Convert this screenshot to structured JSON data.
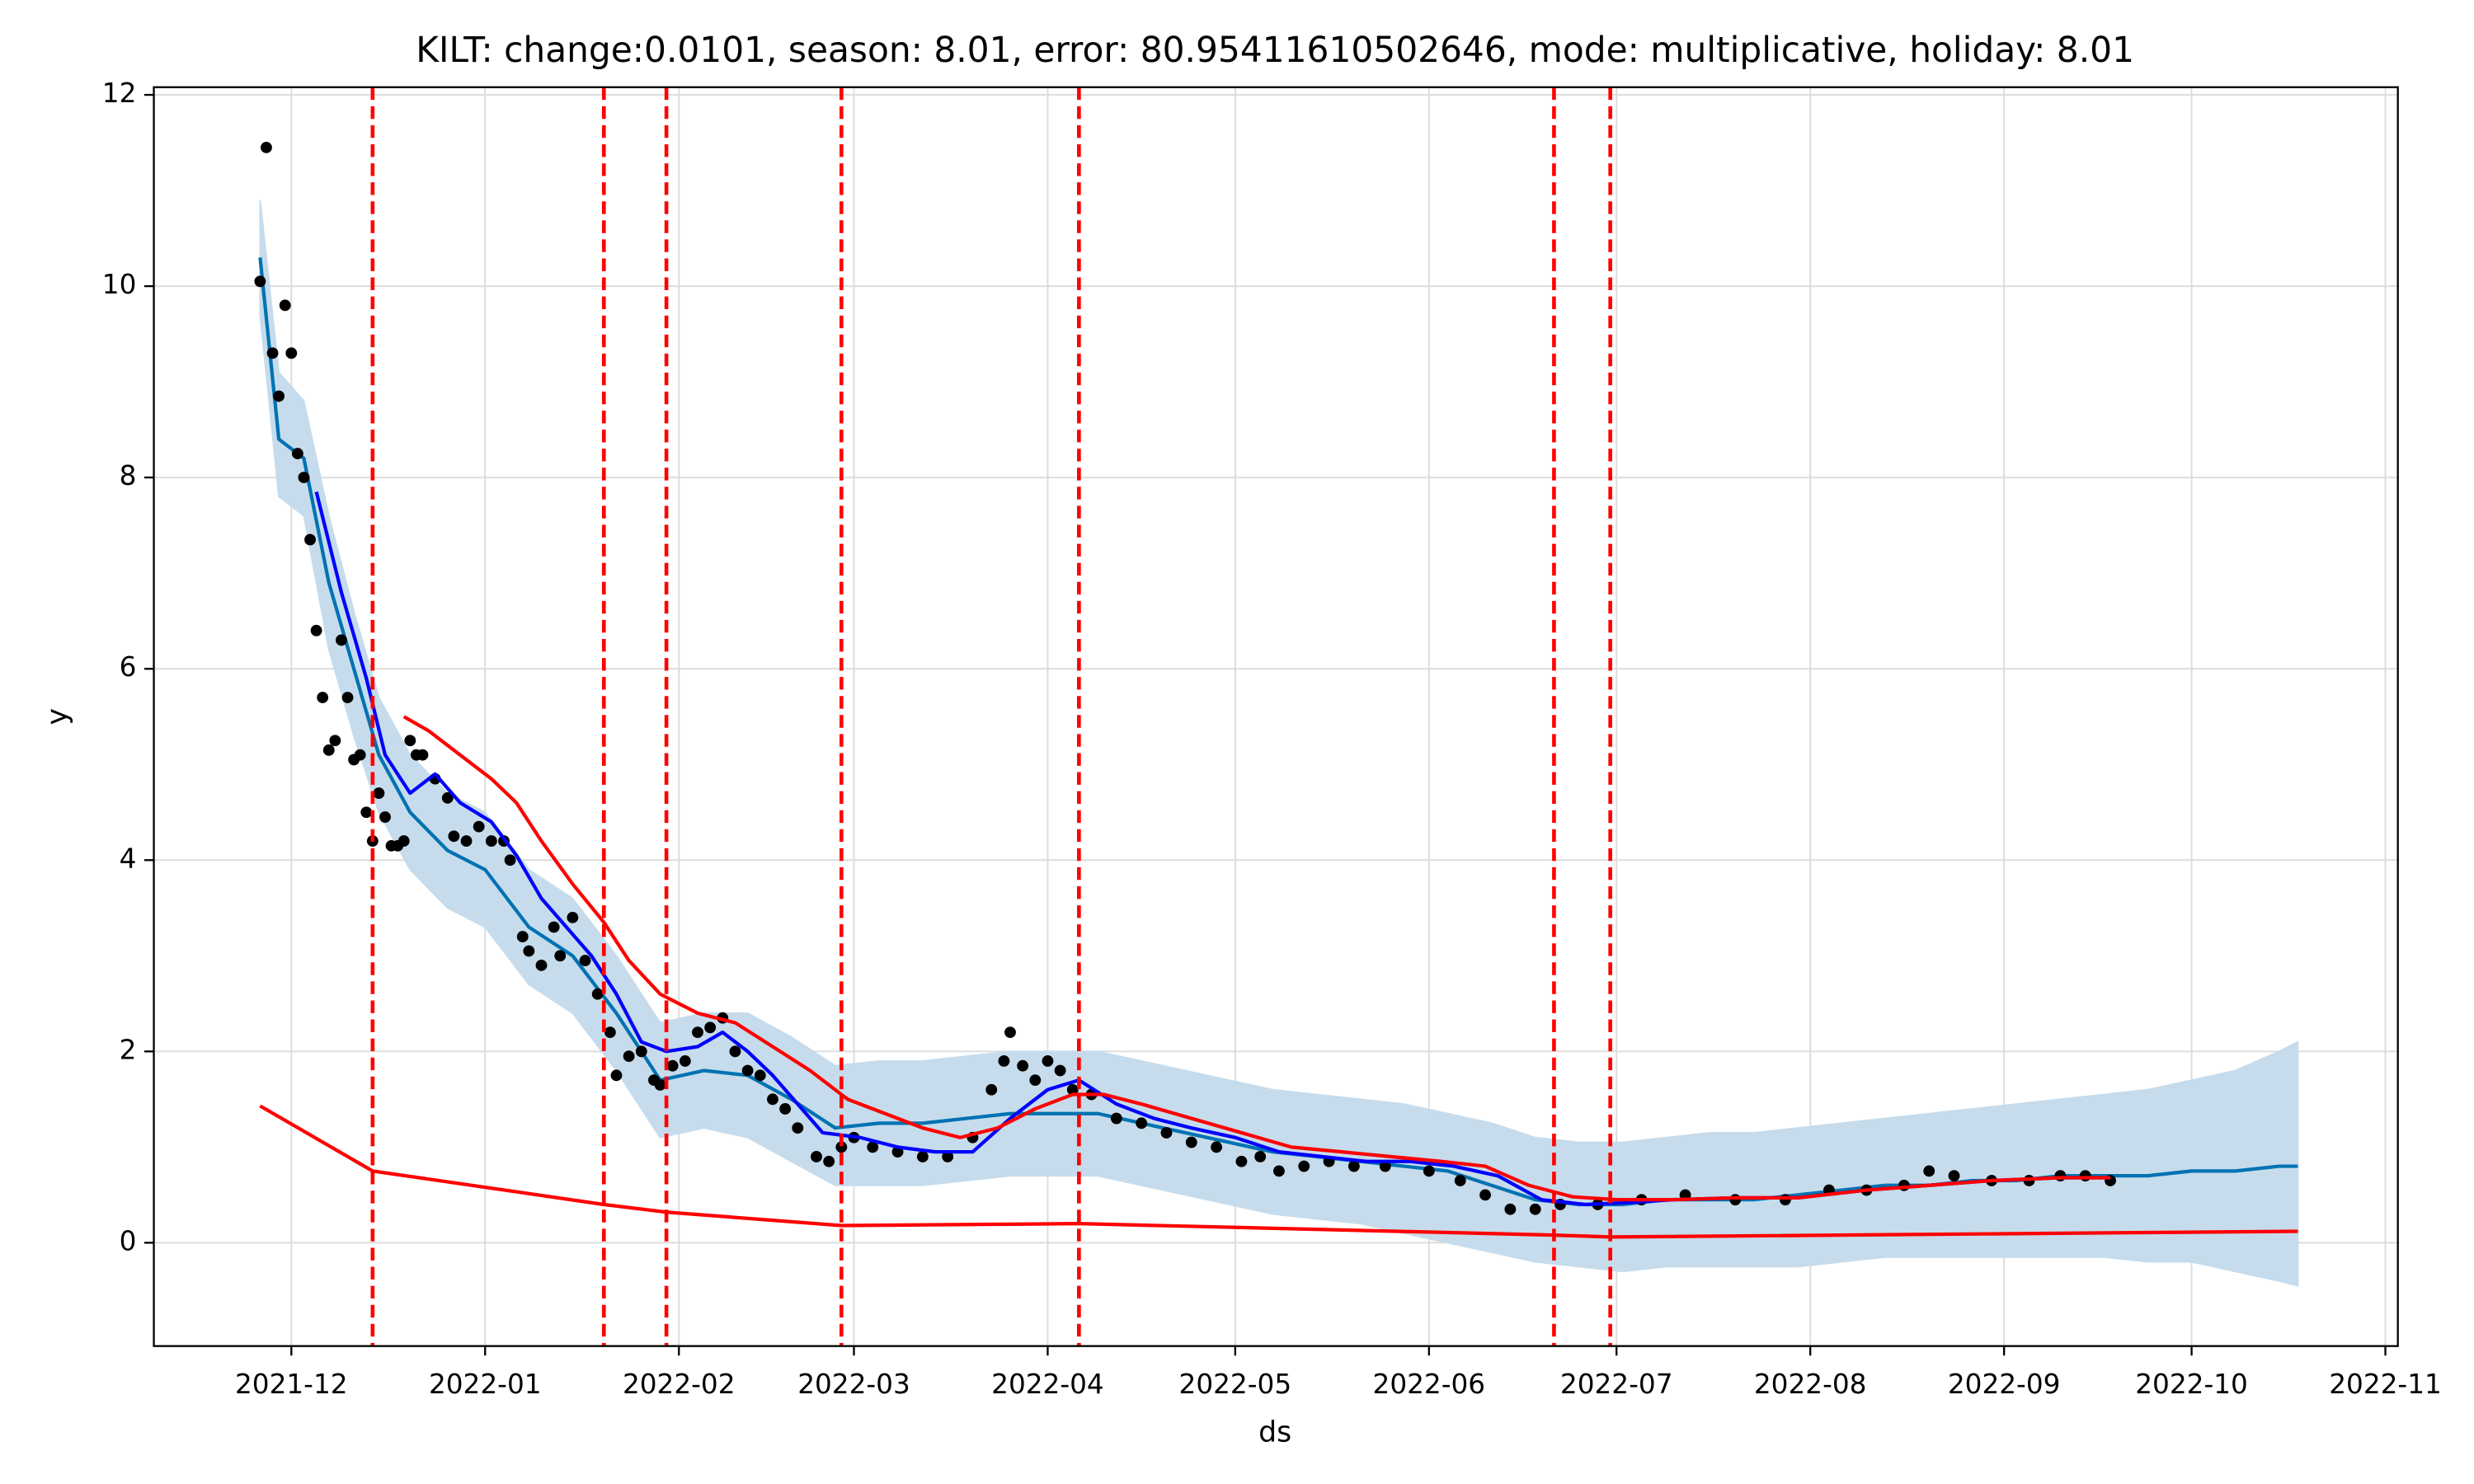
{
  "chart_data": {
    "type": "forecast",
    "title": "KILT: change:0.0101, season: 8.01, error: 80.95411610502646, mode: multiplicative, holiday: 8.01",
    "x_label": "ds",
    "y_label": "y",
    "xlim": [
      "2021-11-09",
      "2022-11-03"
    ],
    "ylim": [
      -1.08,
      12.08
    ],
    "xticks": [
      "2021-12",
      "2022-01",
      "2022-02",
      "2022-03",
      "2022-04",
      "2022-05",
      "2022-06",
      "2022-07",
      "2022-08",
      "2022-09",
      "2022-10",
      "2022-11"
    ],
    "yticks": [
      0,
      2,
      4,
      6,
      8,
      10,
      12
    ],
    "grid": true,
    "changepoints": [
      "2021-12-14",
      "2022-01-20",
      "2022-01-30",
      "2022-02-27",
      "2022-04-06",
      "2022-06-21",
      "2022-06-30"
    ],
    "changepoint_color": "#ff0000",
    "series": [
      {
        "type": "band",
        "color": "#c6dcec",
        "x": [
          "2021-11-26",
          "2021-11-29",
          "2021-12-03",
          "2021-12-07",
          "2021-12-11",
          "2021-12-15",
          "2021-12-20",
          "2021-12-26",
          "2022-01-01",
          "2022-01-08",
          "2022-01-15",
          "2022-01-22",
          "2022-01-29",
          "2022-02-05",
          "2022-02-12",
          "2022-02-19",
          "2022-02-26",
          "2022-03-05",
          "2022-03-12",
          "2022-03-19",
          "2022-03-26",
          "2022-04-02",
          "2022-04-09",
          "2022-04-16",
          "2022-04-23",
          "2022-04-30",
          "2022-05-07",
          "2022-05-14",
          "2022-05-21",
          "2022-05-28",
          "2022-06-04",
          "2022-06-11",
          "2022-06-18",
          "2022-06-25",
          "2022-07-02",
          "2022-07-09",
          "2022-07-16",
          "2022-07-23",
          "2022-07-30",
          "2022-08-06",
          "2022-08-13",
          "2022-08-20",
          "2022-08-27",
          "2022-09-03",
          "2022-09-10",
          "2022-09-17",
          "2022-09-24",
          "2022-10-01",
          "2022-10-08",
          "2022-10-15",
          "2022-10-18"
        ],
        "lower": [
          9.7,
          7.8,
          7.6,
          6.2,
          5.3,
          4.5,
          3.9,
          3.5,
          3.3,
          2.7,
          2.4,
          1.8,
          1.1,
          1.2,
          1.1,
          0.85,
          0.6,
          0.6,
          0.6,
          0.65,
          0.7,
          0.7,
          0.7,
          0.6,
          0.5,
          0.4,
          0.3,
          0.25,
          0.2,
          0.1,
          0.0,
          -0.1,
          -0.2,
          -0.25,
          -0.3,
          -0.25,
          -0.25,
          -0.25,
          -0.25,
          -0.2,
          -0.15,
          -0.15,
          -0.15,
          -0.15,
          -0.15,
          -0.15,
          -0.2,
          -0.2,
          -0.3,
          -0.4,
          -0.45
        ],
        "upper": [
          10.9,
          9.1,
          8.8,
          7.6,
          6.6,
          5.7,
          5.1,
          4.7,
          4.5,
          3.9,
          3.6,
          3.0,
          2.3,
          2.4,
          2.4,
          2.15,
          1.85,
          1.9,
          1.9,
          1.95,
          2.0,
          2.0,
          2.0,
          1.9,
          1.8,
          1.7,
          1.6,
          1.55,
          1.5,
          1.45,
          1.35,
          1.25,
          1.1,
          1.05,
          1.05,
          1.1,
          1.15,
          1.15,
          1.2,
          1.25,
          1.3,
          1.35,
          1.4,
          1.45,
          1.5,
          1.55,
          1.6,
          1.7,
          1.8,
          2.0,
          2.1
        ]
      },
      {
        "type": "line",
        "color": "#0072b2",
        "x": [
          "2021-11-26",
          "2021-11-29",
          "2021-12-03",
          "2021-12-07",
          "2021-12-11",
          "2021-12-15",
          "2021-12-20",
          "2021-12-26",
          "2022-01-01",
          "2022-01-08",
          "2022-01-15",
          "2022-01-22",
          "2022-01-29",
          "2022-02-05",
          "2022-02-12",
          "2022-02-19",
          "2022-02-26",
          "2022-03-05",
          "2022-03-12",
          "2022-03-19",
          "2022-03-26",
          "2022-04-02",
          "2022-04-09",
          "2022-04-16",
          "2022-04-23",
          "2022-04-30",
          "2022-05-07",
          "2022-05-14",
          "2022-05-21",
          "2022-05-28",
          "2022-06-04",
          "2022-06-11",
          "2022-06-18",
          "2022-06-25",
          "2022-07-02",
          "2022-07-09",
          "2022-07-16",
          "2022-07-23",
          "2022-07-30",
          "2022-08-06",
          "2022-08-13",
          "2022-08-20",
          "2022-08-27",
          "2022-09-03",
          "2022-09-10",
          "2022-09-17",
          "2022-09-24",
          "2022-10-01",
          "2022-10-08",
          "2022-10-15",
          "2022-10-18"
        ],
        "values": [
          10.3,
          8.4,
          8.2,
          6.9,
          6.0,
          5.1,
          4.5,
          4.1,
          3.9,
          3.3,
          3.0,
          2.4,
          1.7,
          1.8,
          1.75,
          1.5,
          1.2,
          1.25,
          1.25,
          1.3,
          1.35,
          1.35,
          1.35,
          1.25,
          1.15,
          1.05,
          0.95,
          0.9,
          0.85,
          0.8,
          0.75,
          0.6,
          0.45,
          0.4,
          0.4,
          0.45,
          0.45,
          0.45,
          0.5,
          0.55,
          0.6,
          0.6,
          0.65,
          0.65,
          0.7,
          0.7,
          0.7,
          0.75,
          0.75,
          0.8,
          0.8
        ]
      },
      {
        "type": "scatter",
        "color": "#000000",
        "x": [
          "2021-11-26",
          "2021-11-27",
          "2021-11-28",
          "2021-11-29",
          "2021-11-30",
          "2021-12-01",
          "2021-12-02",
          "2021-12-03",
          "2021-12-04",
          "2021-12-05",
          "2021-12-06",
          "2021-12-07",
          "2021-12-08",
          "2021-12-09",
          "2021-12-10",
          "2021-12-11",
          "2021-12-12",
          "2021-12-13",
          "2021-12-14",
          "2021-12-15",
          "2021-12-16",
          "2021-12-17",
          "2021-12-18",
          "2021-12-19",
          "2021-12-20",
          "2021-12-21",
          "2021-12-22",
          "2021-12-24",
          "2021-12-26",
          "2021-12-27",
          "2021-12-29",
          "2021-12-31",
          "2022-01-02",
          "2022-01-04",
          "2022-01-05",
          "2022-01-07",
          "2022-01-08",
          "2022-01-10",
          "2022-01-12",
          "2022-01-13",
          "2022-01-15",
          "2022-01-17",
          "2022-01-19",
          "2022-01-21",
          "2022-01-22",
          "2022-01-24",
          "2022-01-26",
          "2022-01-28",
          "2022-01-29",
          "2022-01-31",
          "2022-02-02",
          "2022-02-04",
          "2022-02-06",
          "2022-02-08",
          "2022-02-10",
          "2022-02-12",
          "2022-02-14",
          "2022-02-16",
          "2022-02-18",
          "2022-02-20",
          "2022-02-23",
          "2022-02-25",
          "2022-02-27",
          "2022-03-01",
          "2022-03-04",
          "2022-03-08",
          "2022-03-12",
          "2022-03-16",
          "2022-03-20",
          "2022-03-23",
          "2022-03-25",
          "2022-03-26",
          "2022-03-28",
          "2022-03-30",
          "2022-04-01",
          "2022-04-03",
          "2022-04-05",
          "2022-04-08",
          "2022-04-12",
          "2022-04-16",
          "2022-04-20",
          "2022-04-24",
          "2022-04-28",
          "2022-05-02",
          "2022-05-05",
          "2022-05-08",
          "2022-05-12",
          "2022-05-16",
          "2022-05-20",
          "2022-05-25",
          "2022-06-01",
          "2022-06-06",
          "2022-06-10",
          "2022-06-14",
          "2022-06-18",
          "2022-06-22",
          "2022-06-28",
          "2022-07-05",
          "2022-07-12",
          "2022-07-20",
          "2022-07-28",
          "2022-08-04",
          "2022-08-10",
          "2022-08-16",
          "2022-08-20",
          "2022-08-24",
          "2022-08-30",
          "2022-09-05",
          "2022-09-10",
          "2022-09-14",
          "2022-09-18"
        ],
        "values": [
          10.05,
          11.45,
          9.3,
          8.85,
          9.8,
          9.3,
          8.25,
          8.0,
          7.35,
          6.4,
          5.7,
          5.15,
          5.25,
          6.3,
          5.7,
          5.05,
          5.1,
          4.5,
          4.2,
          4.7,
          4.45,
          4.15,
          4.15,
          4.2,
          5.25,
          5.1,
          5.1,
          4.85,
          4.65,
          4.25,
          4.2,
          4.35,
          4.2,
          4.2,
          4.0,
          3.2,
          3.05,
          2.9,
          3.3,
          3.0,
          3.4,
          2.95,
          2.6,
          2.2,
          1.75,
          1.95,
          2.0,
          1.7,
          1.65,
          1.85,
          1.9,
          2.2,
          2.25,
          2.35,
          2.0,
          1.8,
          1.75,
          1.5,
          1.4,
          1.2,
          0.9,
          0.85,
          1.0,
          1.1,
          1.0,
          0.95,
          0.9,
          0.9,
          1.1,
          1.6,
          1.9,
          2.2,
          1.85,
          1.7,
          1.9,
          1.8,
          1.6,
          1.55,
          1.3,
          1.25,
          1.15,
          1.05,
          1.0,
          0.85,
          0.9,
          0.75,
          0.8,
          0.85,
          0.8,
          0.8,
          0.75,
          0.65,
          0.5,
          0.35,
          0.35,
          0.4,
          0.4,
          0.45,
          0.5,
          0.45,
          0.45,
          0.55,
          0.55,
          0.6,
          0.75,
          0.7,
          0.65,
          0.65,
          0.7,
          0.7,
          0.65
        ]
      },
      {
        "type": "line",
        "color": "#0000ff",
        "x": [
          "2021-12-05",
          "2021-12-09",
          "2021-12-13",
          "2021-12-16",
          "2021-12-20",
          "2021-12-24",
          "2021-12-28",
          "2022-01-02",
          "2022-01-06",
          "2022-01-10",
          "2022-01-14",
          "2022-01-18",
          "2022-01-22",
          "2022-01-26",
          "2022-01-30",
          "2022-02-04",
          "2022-02-08",
          "2022-02-12",
          "2022-02-16",
          "2022-02-20",
          "2022-02-24",
          "2022-03-02",
          "2022-03-08",
          "2022-03-14",
          "2022-03-20",
          "2022-03-26",
          "2022-04-01",
          "2022-04-06",
          "2022-04-12",
          "2022-04-18",
          "2022-04-24",
          "2022-05-01",
          "2022-05-08",
          "2022-05-15",
          "2022-05-22",
          "2022-05-29",
          "2022-06-05",
          "2022-06-12",
          "2022-06-19",
          "2022-06-26",
          "2022-07-03",
          "2022-07-10",
          "2022-07-20",
          "2022-07-30",
          "2022-08-10",
          "2022-08-20",
          "2022-08-30",
          "2022-09-10",
          "2022-09-18"
        ],
        "values": [
          7.85,
          6.8,
          5.9,
          5.1,
          4.7,
          4.9,
          4.6,
          4.4,
          4.05,
          3.6,
          3.3,
          3.0,
          2.6,
          2.1,
          2.0,
          2.05,
          2.2,
          2.0,
          1.75,
          1.45,
          1.15,
          1.1,
          1.0,
          0.95,
          0.95,
          1.3,
          1.6,
          1.7,
          1.45,
          1.3,
          1.2,
          1.1,
          0.95,
          0.9,
          0.85,
          0.85,
          0.8,
          0.7,
          0.45,
          0.4,
          0.42,
          0.45,
          0.47,
          0.47,
          0.55,
          0.6,
          0.65,
          0.68,
          0.68
        ]
      },
      {
        "type": "line",
        "color": "#ff0000",
        "x": [
          "2021-12-19",
          "2021-12-23",
          "2021-12-28",
          "2022-01-02",
          "2022-01-06",
          "2022-01-10",
          "2022-01-15",
          "2022-01-20",
          "2022-01-24",
          "2022-01-29",
          "2022-02-04",
          "2022-02-10",
          "2022-02-16",
          "2022-02-22",
          "2022-02-28",
          "2022-03-06",
          "2022-03-12",
          "2022-03-18",
          "2022-03-24",
          "2022-03-30",
          "2022-04-05",
          "2022-04-10",
          "2022-04-16",
          "2022-04-24",
          "2022-05-02",
          "2022-05-10",
          "2022-05-18",
          "2022-05-26",
          "2022-06-03",
          "2022-06-10",
          "2022-06-17",
          "2022-06-24",
          "2022-07-01",
          "2022-07-10",
          "2022-07-20",
          "2022-07-30",
          "2022-08-10",
          "2022-08-20",
          "2022-08-30",
          "2022-09-10",
          "2022-09-18"
        ],
        "values": [
          5.5,
          5.35,
          5.1,
          4.85,
          4.6,
          4.2,
          3.75,
          3.35,
          2.95,
          2.6,
          2.4,
          2.3,
          2.05,
          1.8,
          1.5,
          1.35,
          1.2,
          1.1,
          1.2,
          1.4,
          1.55,
          1.55,
          1.45,
          1.3,
          1.15,
          1.0,
          0.95,
          0.9,
          0.85,
          0.8,
          0.6,
          0.48,
          0.45,
          0.45,
          0.47,
          0.47,
          0.55,
          0.6,
          0.65,
          0.68,
          0.68
        ]
      },
      {
        "type": "line",
        "color": "#ff0000",
        "x": [
          "2021-11-26",
          "2021-12-14",
          "2022-01-20",
          "2022-01-30",
          "2022-02-27",
          "2022-04-06",
          "2022-06-21",
          "2022-06-30",
          "2022-10-18"
        ],
        "values": [
          1.43,
          0.75,
          0.4,
          0.32,
          0.18,
          0.2,
          0.08,
          0.06,
          0.12
        ]
      }
    ]
  }
}
